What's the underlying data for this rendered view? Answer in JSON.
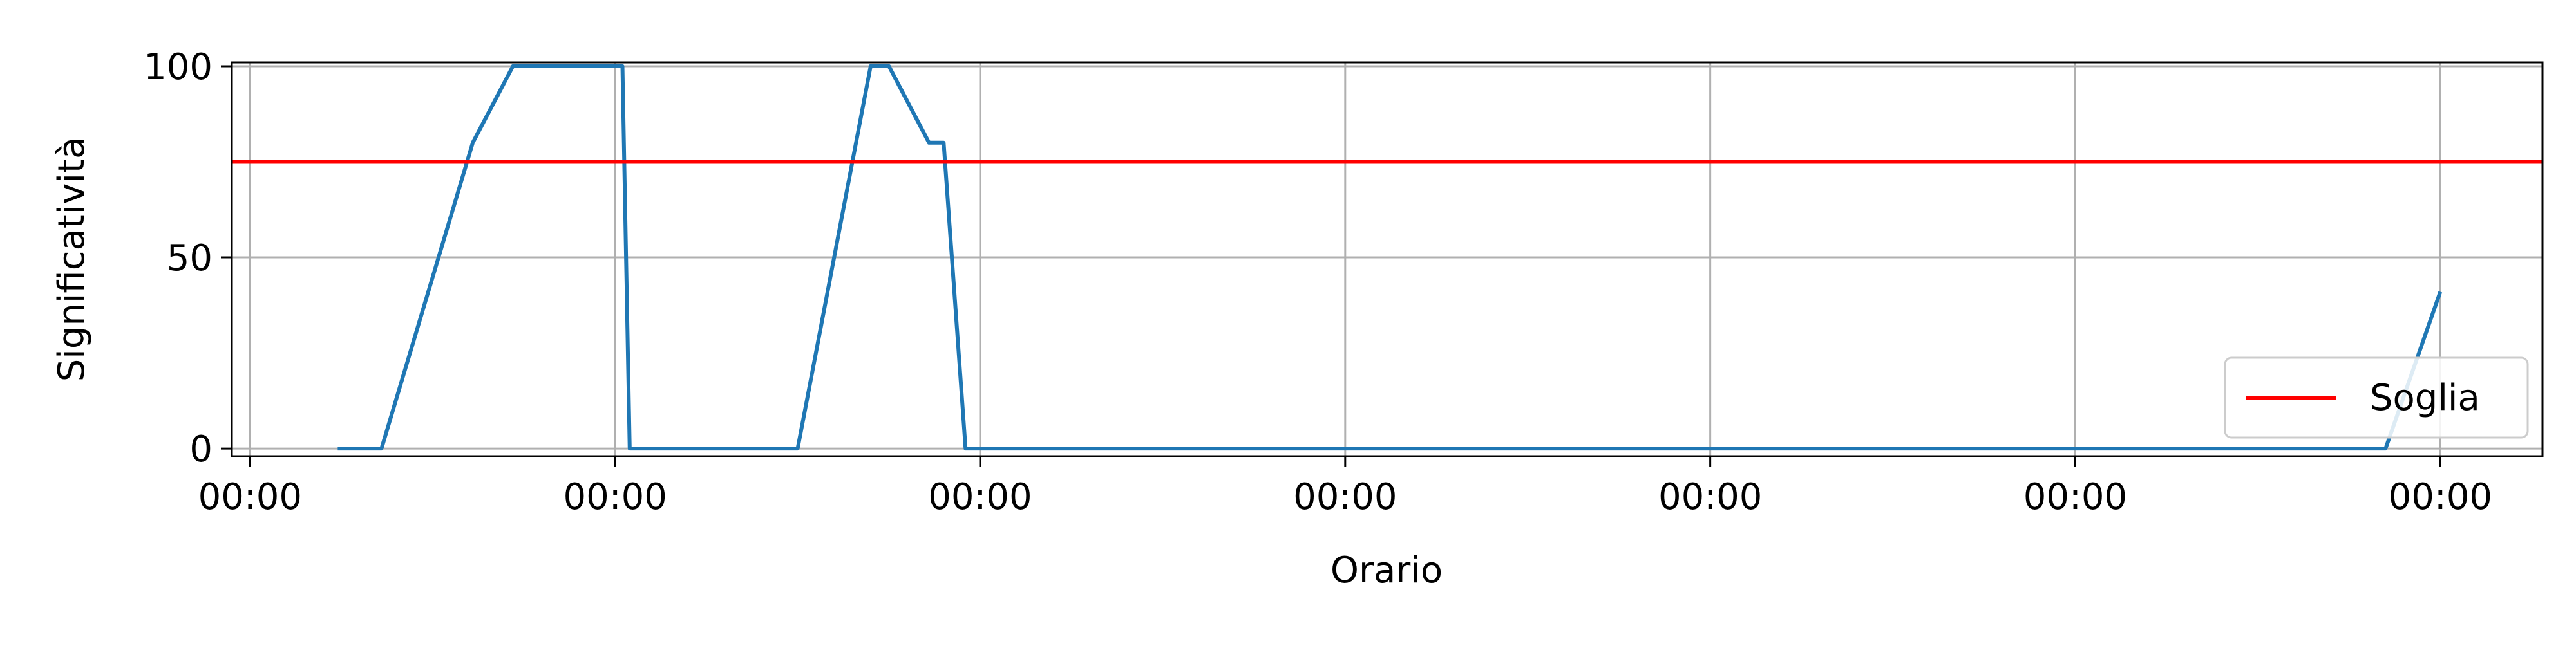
{
  "chart_data": {
    "type": "line",
    "title": "",
    "xlabel": "Orario",
    "ylabel": "Significatività",
    "x_tick_labels": [
      "00:00",
      "00:00",
      "00:00",
      "00:00",
      "00:00",
      "00:00",
      "00:00"
    ],
    "x_ticks": [
      0,
      1,
      2,
      3,
      4,
      5,
      6
    ],
    "xlim": [
      -0.05,
      6.28
    ],
    "y_ticks": [
      0,
      50,
      100
    ],
    "y_tick_labels": [
      "0",
      "50",
      "100"
    ],
    "ylim": [
      -2,
      101
    ],
    "grid": true,
    "legend_position": "lower-right",
    "series": [
      {
        "color": "#1f77b4",
        "x": [
          0.24,
          0.36,
          0.61,
          0.72,
          0.75,
          0.78,
          0.8,
          0.9,
          0.96,
          0.98,
          1.02,
          1.04,
          1.08,
          1.2,
          1.33,
          1.5,
          1.7,
          1.75,
          1.86,
          1.9,
          1.96,
          2.0,
          2.08,
          2.09,
          2.12,
          2.13,
          2.19,
          2.31,
          2.5,
          2.67,
          2.84,
          2.85,
          2.98,
          3.01,
          3.03,
          3.05,
          3.16,
          3.21,
          3.31,
          3.32,
          3.35,
          3.36,
          3.4,
          3.41,
          3.52,
          3.53,
          3.57,
          3.58,
          3.62,
          3.63,
          3.67,
          3.69,
          4.0,
          4.3,
          4.31,
          4.55,
          4.56,
          4.8,
          5.0,
          5.31,
          5.5,
          5.66,
          5.76,
          5.77,
          5.85,
          6.0
        ],
        "y": [
          0,
          0,
          80,
          100,
          100,
          100,
          100,
          100,
          100,
          100,
          100,
          0,
          0,
          0,
          0,
          0,
          100,
          100,
          80,
          80,
          0,
          0,
          0,
          0,
          0,
          0,
          0,
          0,
          0,
          0,
          0,
          0,
          0,
          0,
          0,
          0,
          0,
          0,
          0,
          0,
          0,
          0,
          0,
          0,
          0,
          0,
          0,
          0,
          0,
          0,
          0,
          0,
          0,
          0,
          0,
          0,
          0,
          0,
          0,
          0,
          0,
          0,
          0,
          0,
          0,
          41
        ]
      }
    ],
    "threshold": {
      "name": "Soglia",
      "value": 75,
      "color": "#ff0000"
    }
  }
}
